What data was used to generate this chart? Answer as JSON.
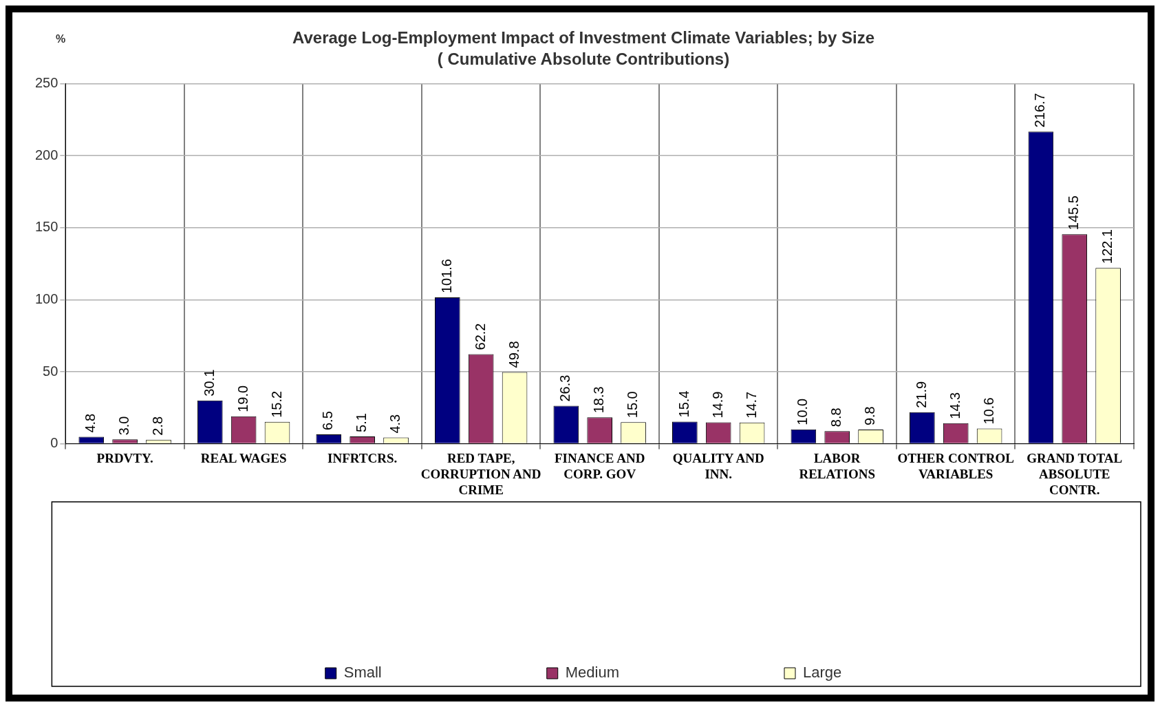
{
  "chart_data": {
    "type": "bar",
    "title": "Average Log-Employment Impact of Investment Climate Variables; by Size",
    "subtitle": "( Cumulative Absolute Contributions)",
    "ylabel": "%",
    "categories": [
      "PRDVTY.",
      "REAL WAGES",
      "INFRTCRS.",
      "RED TAPE, CORRUPTION AND CRIME",
      "FINANCE AND CORP. GOV",
      "QUALITY AND INN.",
      "LABOR RELATIONS",
      "OTHER CONTROL VARIABLES",
      "GRAND TOTAL ABSOLUTE CONTR."
    ],
    "series": [
      {
        "name": "Small",
        "color": "#000080",
        "values": [
          4.8,
          30.1,
          6.5,
          101.6,
          26.3,
          15.4,
          10.0,
          21.9,
          216.7
        ],
        "value_labels": [
          "4.8",
          "30.1",
          "6.5",
          "101.6",
          "26.3",
          "15.4",
          "10.0",
          "21.9",
          "216.7"
        ]
      },
      {
        "name": "Medium",
        "color": "#993366",
        "values": [
          3.0,
          19.0,
          5.1,
          62.2,
          18.3,
          14.9,
          8.8,
          14.3,
          145.5
        ],
        "value_labels": [
          "3.0",
          "19.0",
          "5.1",
          "62.2",
          "18.3",
          "14.9",
          "8.8",
          "14.3",
          "145.5"
        ]
      },
      {
        "name": "Large",
        "color": "#ffffcc",
        "values": [
          2.8,
          15.2,
          4.3,
          49.8,
          15.0,
          14.7,
          9.8,
          10.6,
          122.1
        ],
        "value_labels": [
          "2.8",
          "15.2",
          "4.3",
          "49.8",
          "15.0",
          "14.7",
          "9.8",
          "10.6",
          "122.1"
        ]
      }
    ],
    "ylim": [
      0,
      250
    ],
    "yticks": [
      0,
      50,
      100,
      150,
      200,
      250
    ],
    "grid": true,
    "legend": "bottom"
  }
}
